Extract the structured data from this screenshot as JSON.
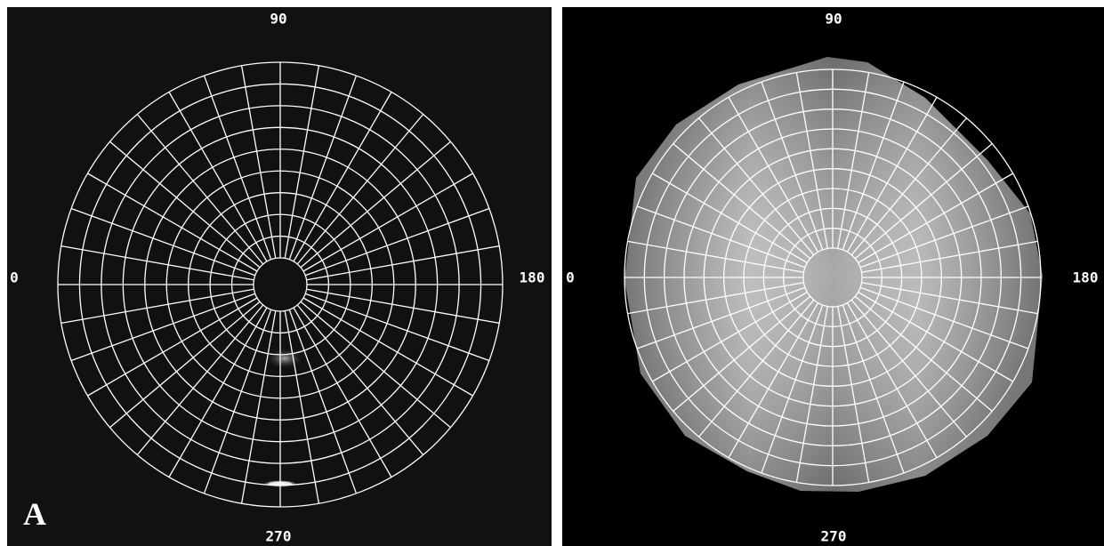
{
  "panels": [
    {
      "label": "A",
      "angle_labels": {
        "top": "90",
        "left": "0",
        "right": "180",
        "bottom": "270"
      }
    },
    {
      "angle_labels": {
        "top": "90",
        "left": "0",
        "right": "180",
        "bottom": "270"
      }
    }
  ]
}
